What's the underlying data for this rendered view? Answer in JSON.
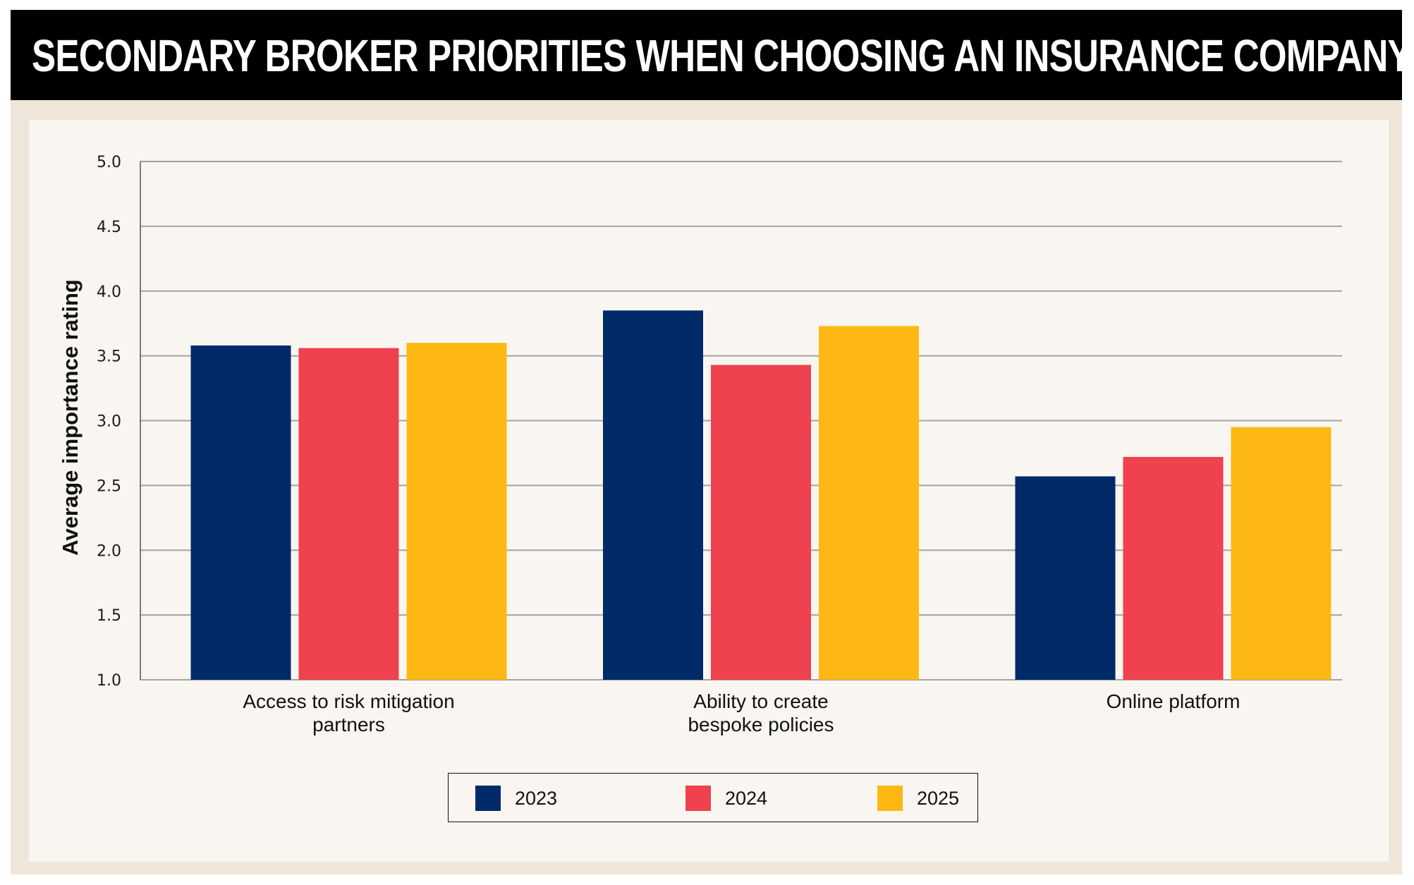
{
  "header": {
    "title": "SECONDARY BROKER PRIORITIES WHEN CHOOSING AN INSURANCE COMPANY"
  },
  "colors": {
    "header_bg": "#000000",
    "frame_bg": "#efe6da",
    "panel_bg": "#f9f6f1",
    "grid": "#a3a3a3",
    "axis": "#555555"
  },
  "chart_data": {
    "type": "bar",
    "title": "SECONDARY BROKER PRIORITIES WHEN CHOOSING AN INSURANCE COMPANY",
    "xlabel": "",
    "ylabel": "Average importance rating",
    "ylim": [
      1.0,
      5.0
    ],
    "yticks": [
      "1.0",
      "1.5",
      "2.0",
      "2.5",
      "3.0",
      "3.5",
      "4.0",
      "4.5",
      "5.0"
    ],
    "ytick_values": [
      1.0,
      1.5,
      2.0,
      2.5,
      3.0,
      3.5,
      4.0,
      4.5,
      5.0
    ],
    "grid": true,
    "categories": [
      [
        "Access to risk mitigation",
        "partners"
      ],
      [
        "Ability to create",
        "bespoke policies"
      ],
      [
        "Online platform"
      ]
    ],
    "series": [
      {
        "name": "2023",
        "color": "#002b68",
        "values": [
          3.58,
          3.85,
          2.57
        ]
      },
      {
        "name": "2024",
        "color": "#ef414e",
        "values": [
          3.56,
          3.43,
          2.72
        ]
      },
      {
        "name": "2025",
        "color": "#fdb813",
        "values": [
          3.6,
          3.73,
          2.95
        ]
      }
    ],
    "legend": {
      "position": "bottom-center",
      "entries": [
        "2023",
        "2024",
        "2025"
      ]
    }
  }
}
